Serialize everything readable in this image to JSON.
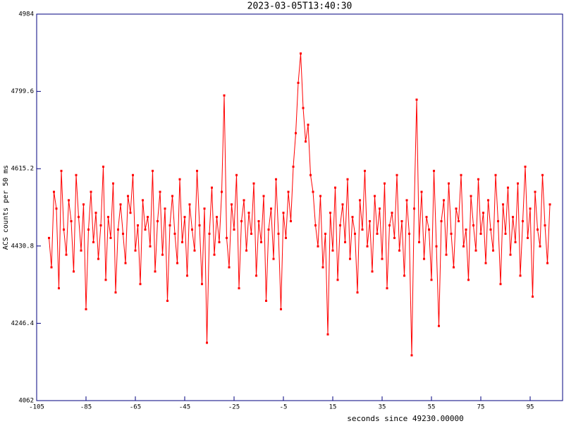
{
  "chart_data": {
    "type": "line",
    "title": "2023-03-05T13:40:30",
    "x_label": "seconds since 49230.00000",
    "y_label": "ACS counts per 50 ms",
    "xlim": [
      -105,
      108.14
    ],
    "ylim": [
      4062,
      4984
    ],
    "xticks": [
      -105,
      -85,
      -65,
      -45,
      -25,
      -5,
      15,
      35,
      55,
      75,
      95
    ],
    "yticks": [
      4062,
      4246.4,
      4430.8,
      4615.2,
      4799.6,
      4984
    ],
    "series": [
      {
        "color": "#ff0000",
        "x": [
          -100,
          -99,
          -98,
          -97,
          -96,
          -95,
          -94,
          -93,
          -92,
          -91,
          -90,
          -89,
          -88,
          -87,
          -86,
          -85,
          -84,
          -83,
          -82,
          -81,
          -80,
          -79,
          -78,
          -77,
          -76,
          -75,
          -74,
          -73,
          -72,
          -71,
          -70,
          -69,
          -68,
          -67,
          -66,
          -65,
          -64,
          -63,
          -62,
          -61,
          -60,
          -59,
          -58,
          -57,
          -56,
          -55,
          -54,
          -53,
          -52,
          -51,
          -50,
          -49,
          -48,
          -47,
          -46,
          -45,
          -44,
          -43,
          -42,
          -41,
          -40,
          -39,
          -38,
          -37,
          -36,
          -35,
          -34,
          -33,
          -32,
          -31,
          -30,
          -29,
          -28,
          -27,
          -26,
          -25,
          -24,
          -23,
          -22,
          -21,
          -20,
          -19,
          -18,
          -17,
          -16,
          -15,
          -14,
          -13,
          -12,
          -11,
          -10,
          -9,
          -8,
          -7,
          -6,
          -5,
          -4,
          -3,
          -2,
          -1,
          0,
          1,
          2,
          3,
          4,
          5,
          6,
          7,
          8,
          9,
          10,
          11,
          12,
          13,
          14,
          15,
          16,
          17,
          18,
          19,
          20,
          21,
          22,
          23,
          24,
          25,
          26,
          27,
          28,
          29,
          30,
          31,
          32,
          33,
          34,
          35,
          36,
          37,
          38,
          39,
          40,
          41,
          42,
          43,
          44,
          45,
          46,
          47,
          48,
          49,
          50,
          51,
          52,
          53,
          54,
          55,
          56,
          57,
          58,
          59,
          60,
          61,
          62,
          63,
          64,
          65,
          66,
          67,
          68,
          69,
          70,
          71,
          72,
          73,
          74,
          75,
          76,
          77,
          78,
          79,
          80,
          81,
          82,
          83,
          84,
          85,
          86,
          87,
          88,
          89,
          90,
          91,
          92,
          93,
          94,
          95,
          96,
          97,
          98,
          99,
          100,
          101,
          102,
          103
        ],
        "values": [
          4450,
          4380,
          4560,
          4520,
          4330,
          4610,
          4470,
          4410,
          4540,
          4490,
          4370,
          4600,
          4500,
          4420,
          4530,
          4280,
          4470,
          4560,
          4440,
          4510,
          4400,
          4480,
          4620,
          4350,
          4500,
          4450,
          4580,
          4320,
          4470,
          4530,
          4460,
          4390,
          4550,
          4510,
          4600,
          4420,
          4480,
          4340,
          4540,
          4470,
          4500,
          4430,
          4610,
          4370,
          4490,
          4560,
          4410,
          4520,
          4300,
          4480,
          4550,
          4460,
          4390,
          4590,
          4440,
          4500,
          4360,
          4530,
          4470,
          4420,
          4610,
          4480,
          4340,
          4520,
          4200,
          4460,
          4570,
          4410,
          4500,
          4440,
          4560,
          4790,
          4450,
          4380,
          4530,
          4470,
          4600,
          4330,
          4490,
          4540,
          4420,
          4510,
          4460,
          4580,
          4360,
          4490,
          4440,
          4550,
          4300,
          4470,
          4520,
          4400,
          4590,
          4460,
          4280,
          4510,
          4450,
          4560,
          4490,
          4620,
          4700,
          4820,
          4890,
          4760,
          4680,
          4720,
          4600,
          4560,
          4480,
          4430,
          4550,
          4380,
          4460,
          4220,
          4510,
          4420,
          4570,
          4350,
          4480,
          4530,
          4440,
          4590,
          4400,
          4500,
          4460,
          4320,
          4540,
          4470,
          4610,
          4430,
          4490,
          4370,
          4550,
          4460,
          4520,
          4400,
          4580,
          4330,
          4480,
          4510,
          4450,
          4600,
          4420,
          4490,
          4360,
          4540,
          4460,
          4170,
          4520,
          4780,
          4440,
          4560,
          4400,
          4500,
          4470,
          4350,
          4610,
          4430,
          4240,
          4490,
          4540,
          4410,
          4580,
          4460,
          4380,
          4520,
          4490,
          4600,
          4430,
          4470,
          4350,
          4550,
          4480,
          4420,
          4590,
          4460,
          4510,
          4390,
          4540,
          4470,
          4420,
          4600,
          4490,
          4340,
          4530,
          4460,
          4570,
          4410,
          4500,
          4440,
          4580,
          4360,
          4490,
          4620,
          4450,
          4520,
          4310,
          4560,
          4470,
          4430,
          4600,
          4480,
          4390,
          4530
        ]
      }
    ]
  }
}
